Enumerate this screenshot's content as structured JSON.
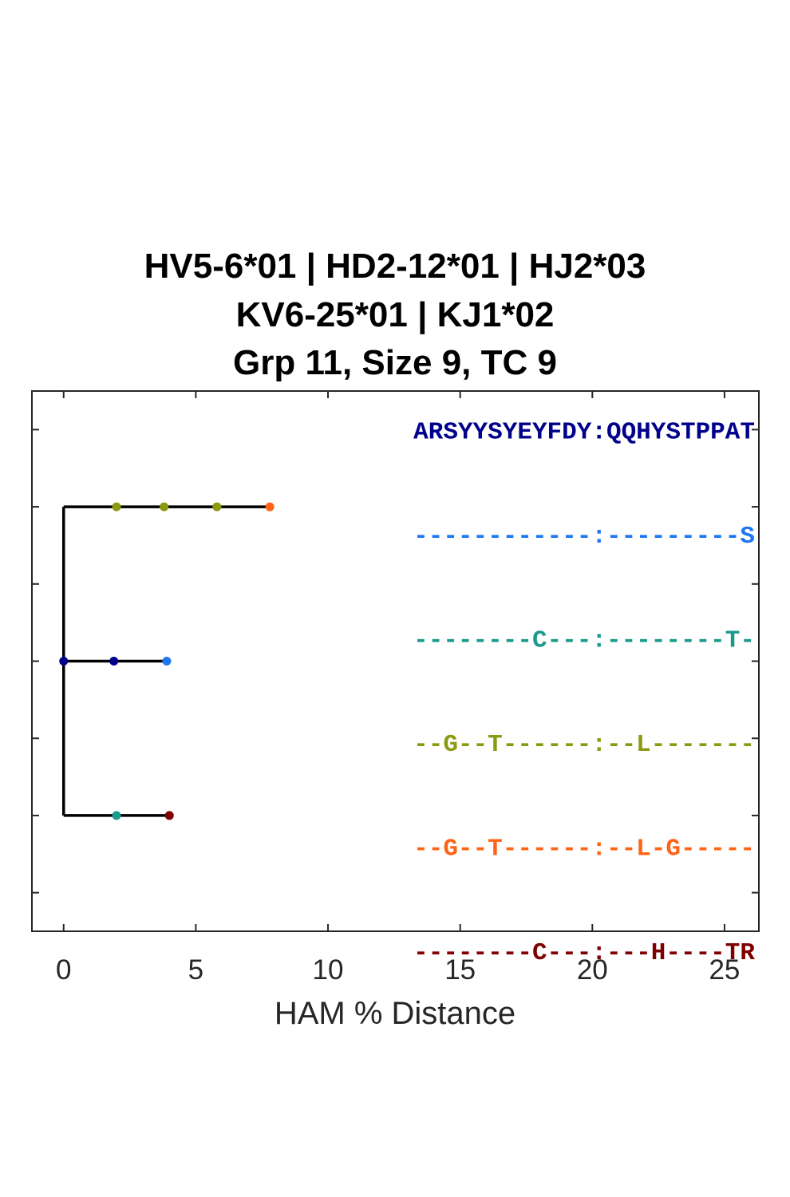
{
  "title_lines": [
    "HV5-6*01 | HD2-12*01 | HJ2*03",
    "KV6-25*01 | KJ1*02",
    "Grp 11, Size 9, TC 9"
  ],
  "chart_data": {
    "type": "tree",
    "xlabel": "HAM % Distance",
    "xlim": [
      -1.2,
      26.3
    ],
    "xticks": [
      0,
      5,
      10,
      15,
      20,
      25
    ],
    "ylim": [
      0.5,
      7.5
    ],
    "grid": false,
    "branches": [
      {
        "y": 2,
        "x_start": 0,
        "x_end": 7.8
      },
      {
        "y": 4,
        "x_start": 0,
        "x_end": 3.9
      },
      {
        "y": 6,
        "x_start": 0,
        "x_end": 4.0
      }
    ],
    "trunk": {
      "x": 0,
      "y_start": 2,
      "y_end": 6
    },
    "nodes": [
      {
        "x": 0,
        "y": 4,
        "color": "#00008b"
      },
      {
        "x": 1.9,
        "y": 4,
        "color": "#00008b"
      },
      {
        "x": 3.9,
        "y": 4,
        "color": "#1f77f4"
      },
      {
        "x": 2.0,
        "y": 2,
        "color": "#8c9a12"
      },
      {
        "x": 3.8,
        "y": 2,
        "color": "#8c9a12"
      },
      {
        "x": 5.8,
        "y": 2,
        "color": "#8c9a12"
      },
      {
        "x": 7.8,
        "y": 2,
        "color": "#ff6316"
      },
      {
        "x": 2.0,
        "y": 6,
        "color": "#1a9a8a"
      },
      {
        "x": 4.0,
        "y": 6,
        "color": "#7f0000"
      }
    ],
    "sequences": [
      {
        "text": "ARSYYSYEYFDY:QQHYSTPPAT",
        "color": "#00008b",
        "y": 1
      },
      {
        "text": "------------:---------S",
        "color": "#1f77f4",
        "y": 2.35
      },
      {
        "text": "--------C---:--------T-",
        "color": "#1a9a8a",
        "y": 3.7
      },
      {
        "text": "--G--T------:--L-------",
        "color": "#8c9a12",
        "y": 5.05
      },
      {
        "text": "--G--T------:--L-G-----",
        "color": "#ff6316",
        "y": 6.4
      },
      {
        "text": "--------C---:---H----TR",
        "color": "#7f0000",
        "y": 7.75
      }
    ]
  }
}
